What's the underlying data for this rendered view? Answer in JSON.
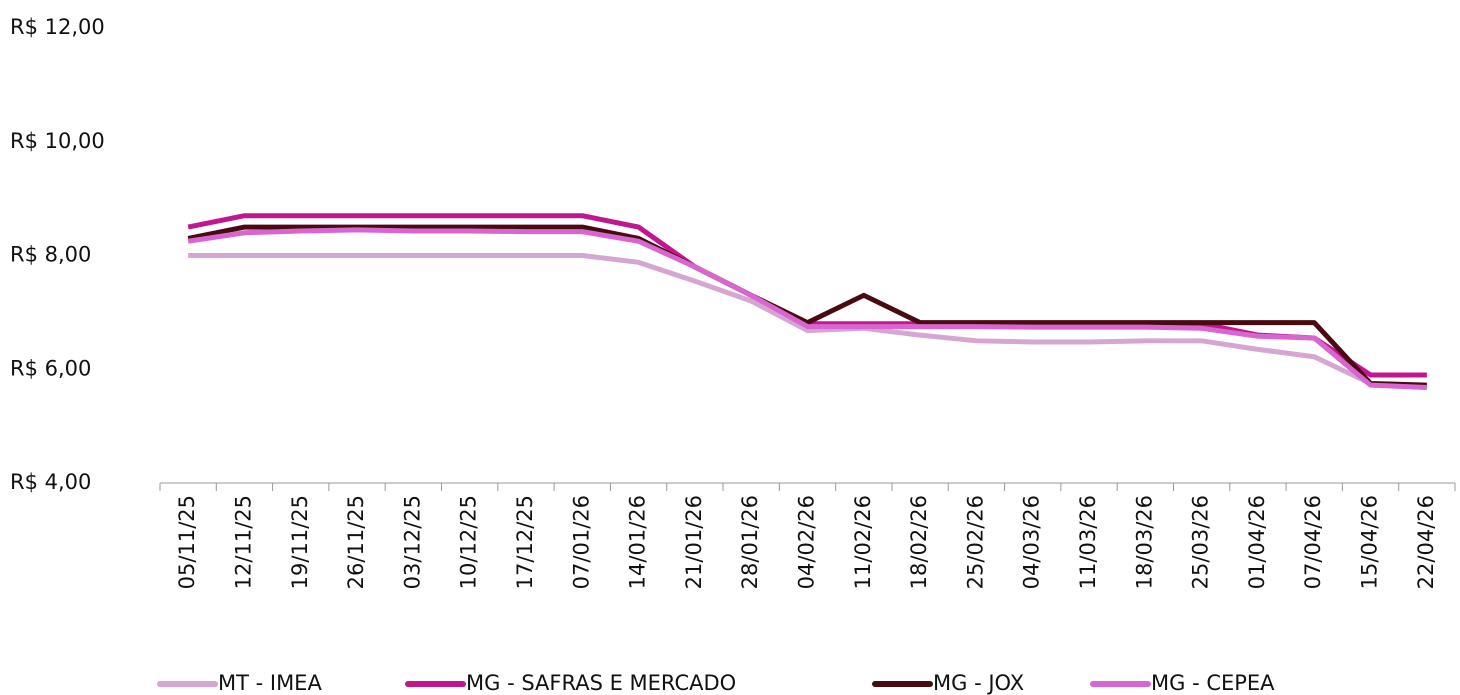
{
  "chart_data": {
    "type": "line",
    "categories": [
      "05/11/25",
      "12/11/25",
      "19/11/25",
      "26/11/25",
      "03/12/25",
      "10/12/25",
      "17/12/25",
      "07/01/26",
      "14/01/26",
      "21/01/26",
      "28/01/26",
      "04/02/26",
      "11/02/26",
      "18/02/26",
      "25/02/26",
      "04/03/26",
      "11/03/26",
      "18/03/26",
      "25/03/26",
      "01/04/26",
      "07/04/26",
      "15/04/26",
      "22/04/26"
    ],
    "series": [
      {
        "name": "MT - IMEA",
        "color": "#d6a6d2",
        "values": [
          8.0,
          8.0,
          8.0,
          8.0,
          8.0,
          8.0,
          8.0,
          8.0,
          7.88,
          7.55,
          7.2,
          6.68,
          6.72,
          6.6,
          6.5,
          6.48,
          6.48,
          6.5,
          6.5,
          6.35,
          6.22,
          5.75,
          5.7
        ]
      },
      {
        "name": "MG - SAFRAS E MERCADO",
        "color": "#c0168e",
        "values": [
          8.5,
          8.7,
          8.7,
          8.7,
          8.7,
          8.7,
          8.7,
          8.7,
          8.5,
          7.8,
          7.3,
          6.8,
          6.8,
          6.8,
          6.8,
          6.8,
          6.8,
          6.8,
          6.8,
          6.6,
          6.55,
          5.9,
          5.9
        ]
      },
      {
        "name": "MG - JOX",
        "color": "#4a0a12",
        "values": [
          8.3,
          8.5,
          8.5,
          8.5,
          8.5,
          8.5,
          8.5,
          8.5,
          8.3,
          7.8,
          7.3,
          6.82,
          7.3,
          6.82,
          6.82,
          6.82,
          6.82,
          6.82,
          6.82,
          6.82,
          6.82,
          5.75,
          5.72
        ]
      },
      {
        "name": "MG - CEPEA",
        "color": "#d966d0",
        "values": [
          8.25,
          8.4,
          8.43,
          8.45,
          8.43,
          8.43,
          8.42,
          8.42,
          8.25,
          7.8,
          7.3,
          6.75,
          6.75,
          6.75,
          6.75,
          6.74,
          6.74,
          6.74,
          6.72,
          6.58,
          6.55,
          5.72,
          5.68
        ]
      }
    ],
    "ylim": [
      4,
      12
    ],
    "yticks": [
      {
        "value": 4,
        "label": "R$ 4,00"
      },
      {
        "value": 6,
        "label": "R$ 6,00"
      },
      {
        "value": 8,
        "label": "R$ 8,00"
      },
      {
        "value": 10,
        "label": "R$ 10,00"
      },
      {
        "value": 12,
        "label": "R$ 12,00"
      }
    ],
    "grid": false,
    "legend": "bottom"
  }
}
